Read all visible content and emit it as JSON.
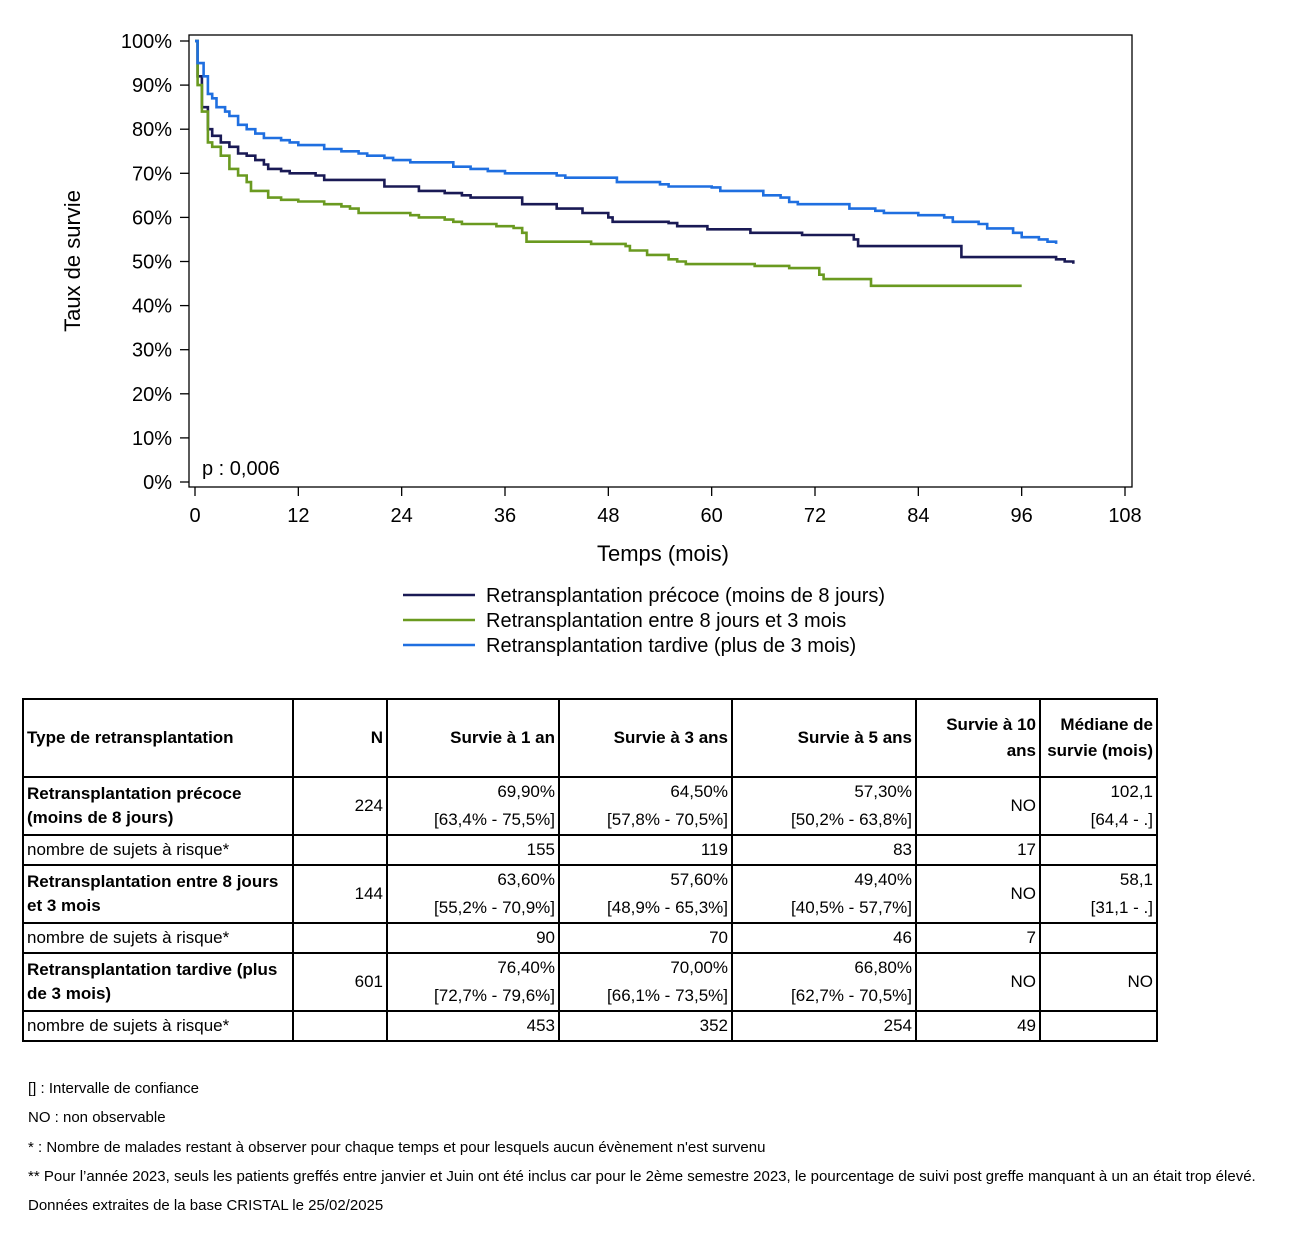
{
  "chart_data": {
    "type": "line",
    "ylabel": "Taux de survie",
    "xlabel": "Temps (mois)",
    "annotation": "p : 0,006",
    "xlim": [
      0,
      108
    ],
    "ylim": [
      0,
      100
    ],
    "x_ticks": [
      0,
      12,
      24,
      36,
      48,
      60,
      72,
      84,
      96,
      108
    ],
    "y_ticks": [
      0,
      10,
      20,
      30,
      40,
      50,
      60,
      70,
      80,
      90,
      100
    ],
    "y_tick_labels": [
      "0%",
      "10%",
      "20%",
      "30%",
      "40%",
      "50%",
      "60%",
      "70%",
      "80%",
      "90%",
      "100%"
    ],
    "grid": false,
    "legend_position": "bottom",
    "series": [
      {
        "name": "Retransplantation précoce (moins de 8 jours)",
        "color": "#1a1a55",
        "points": [
          [
            0,
            100
          ],
          [
            0.3,
            92
          ],
          [
            0.8,
            85
          ],
          [
            1.5,
            80
          ],
          [
            2,
            78.5
          ],
          [
            3,
            77
          ],
          [
            4,
            76
          ],
          [
            5,
            74.5
          ],
          [
            6,
            74
          ],
          [
            7,
            73
          ],
          [
            8,
            72
          ],
          [
            8.5,
            71
          ],
          [
            10,
            70.5
          ],
          [
            11,
            70
          ],
          [
            14,
            69.5
          ],
          [
            15,
            68.5
          ],
          [
            20,
            68.5
          ],
          [
            22,
            67
          ],
          [
            25,
            67
          ],
          [
            26,
            66
          ],
          [
            28,
            66
          ],
          [
            29,
            65.5
          ],
          [
            31,
            65
          ],
          [
            32,
            64.5
          ],
          [
            37,
            64.5
          ],
          [
            38,
            63
          ],
          [
            40,
            63
          ],
          [
            42,
            62
          ],
          [
            45,
            61
          ],
          [
            48,
            60
          ],
          [
            48.5,
            59
          ],
          [
            55,
            58.7
          ],
          [
            56,
            58
          ],
          [
            59,
            58
          ],
          [
            59.5,
            57.3
          ],
          [
            64,
            57.3
          ],
          [
            64.5,
            56.5
          ],
          [
            70,
            56.5
          ],
          [
            70.5,
            56
          ],
          [
            76,
            56
          ],
          [
            76.5,
            55
          ],
          [
            77,
            53.5
          ],
          [
            88,
            53.5
          ],
          [
            89,
            51
          ],
          [
            99,
            51
          ],
          [
            100,
            50.5
          ],
          [
            101,
            50
          ],
          [
            102,
            49.5
          ]
        ]
      },
      {
        "name": "Retransplantation entre 8 jours et 3 mois",
        "color": "#6a9a20",
        "points": [
          [
            0,
            100
          ],
          [
            0.3,
            90
          ],
          [
            0.8,
            84
          ],
          [
            1.5,
            77
          ],
          [
            2,
            76
          ],
          [
            3,
            74
          ],
          [
            4,
            71
          ],
          [
            5,
            69.5
          ],
          [
            6,
            68
          ],
          [
            6.5,
            66
          ],
          [
            8,
            66
          ],
          [
            8.5,
            64.5
          ],
          [
            10,
            64
          ],
          [
            12,
            63.6
          ],
          [
            15,
            63
          ],
          [
            17,
            62.5
          ],
          [
            18,
            62
          ],
          [
            19,
            61
          ],
          [
            24,
            61
          ],
          [
            25,
            60.5
          ],
          [
            26,
            60
          ],
          [
            28,
            60
          ],
          [
            29,
            59.5
          ],
          [
            30,
            59
          ],
          [
            31,
            58.5
          ],
          [
            34,
            58.5
          ],
          [
            35,
            58
          ],
          [
            37,
            57.6
          ],
          [
            38,
            56.5
          ],
          [
            38.5,
            54.5
          ],
          [
            45,
            54.5
          ],
          [
            46,
            54
          ],
          [
            50,
            53.5
          ],
          [
            50.5,
            52.5
          ],
          [
            52,
            52.5
          ],
          [
            52.5,
            51.5
          ],
          [
            54,
            51.5
          ],
          [
            55,
            50.5
          ],
          [
            56,
            50
          ],
          [
            57,
            49.4
          ],
          [
            64,
            49.4
          ],
          [
            65,
            49
          ],
          [
            69,
            48.5
          ],
          [
            72,
            48.5
          ],
          [
            72.5,
            47
          ],
          [
            73,
            46
          ],
          [
            78,
            46
          ],
          [
            78.5,
            44.5
          ],
          [
            96,
            44.5
          ]
        ]
      },
      {
        "name": "Retransplantation tardive (plus de 3 mois)",
        "color": "#1f6fe0",
        "points": [
          [
            0,
            100
          ],
          [
            0.3,
            95
          ],
          [
            1,
            92
          ],
          [
            1.5,
            88
          ],
          [
            2,
            87
          ],
          [
            2.5,
            85
          ],
          [
            3.5,
            84
          ],
          [
            4,
            83
          ],
          [
            5,
            81
          ],
          [
            6,
            80
          ],
          [
            7,
            79
          ],
          [
            8,
            78
          ],
          [
            9,
            78
          ],
          [
            10,
            77.5
          ],
          [
            11,
            77
          ],
          [
            12,
            76.4
          ],
          [
            15,
            75.5
          ],
          [
            17,
            75
          ],
          [
            19,
            74.5
          ],
          [
            20,
            74
          ],
          [
            22,
            73.5
          ],
          [
            23,
            73
          ],
          [
            25,
            72.5
          ],
          [
            29,
            72.5
          ],
          [
            30,
            71.5
          ],
          [
            32,
            71
          ],
          [
            34,
            70.5
          ],
          [
            36,
            70
          ],
          [
            42,
            69.5
          ],
          [
            43,
            69
          ],
          [
            48,
            69
          ],
          [
            49,
            68
          ],
          [
            53,
            68
          ],
          [
            54,
            67.5
          ],
          [
            55,
            67
          ],
          [
            60,
            66.8
          ],
          [
            61,
            66
          ],
          [
            65,
            66
          ],
          [
            66,
            65
          ],
          [
            68,
            64.5
          ],
          [
            69,
            63.5
          ],
          [
            70,
            63
          ],
          [
            75,
            63
          ],
          [
            76,
            62
          ],
          [
            79,
            61.5
          ],
          [
            80,
            61
          ],
          [
            83,
            61
          ],
          [
            84,
            60.5
          ],
          [
            87,
            60
          ],
          [
            88,
            59
          ],
          [
            91,
            58.5
          ],
          [
            92,
            57.5
          ],
          [
            95,
            56.5
          ],
          [
            96,
            55.5
          ],
          [
            98,
            55
          ],
          [
            99,
            54.5
          ],
          [
            100,
            54
          ]
        ]
      }
    ]
  },
  "table": {
    "headers": [
      "Type de retransplantation",
      "N",
      "Survie à 1 an",
      "Survie à 3 ans",
      "Survie à 5 ans",
      "Survie à 10 ans",
      "Médiane de survie (mois)"
    ],
    "rows": [
      {
        "label": "Retransplantation précoce (moins de 8 jours)",
        "n": "224",
        "s1": "69,90%",
        "s1_ci": "[63,4% - 75,5%]",
        "s3": "64,50%",
        "s3_ci": "[57,8% - 70,5%]",
        "s5": "57,30%",
        "s5_ci": "[50,2% - 63,8%]",
        "s10": "NO",
        "median": "102,1",
        "median_ci": "[64,4 - .]",
        "risk_label": "nombre de sujets à risque*",
        "risk": [
          "155",
          "119",
          "83",
          "17"
        ]
      },
      {
        "label": "Retransplantation entre 8 jours et 3 mois",
        "n": "144",
        "s1": "63,60%",
        "s1_ci": "[55,2% - 70,9%]",
        "s3": "57,60%",
        "s3_ci": "[48,9% - 65,3%]",
        "s5": "49,40%",
        "s5_ci": "[40,5% - 57,7%]",
        "s10": "NO",
        "median": "58,1",
        "median_ci": "[31,1 - .]",
        "risk_label": "nombre de sujets à risque*",
        "risk": [
          "90",
          "70",
          "46",
          "7"
        ]
      },
      {
        "label": "Retransplantation tardive (plus de 3 mois)",
        "n": "601",
        "s1": "76,40%",
        "s1_ci": "[72,7% - 79,6%]",
        "s3": "70,00%",
        "s3_ci": "[66,1% - 73,5%]",
        "s5": "66,80%",
        "s5_ci": "[62,7% - 70,5%]",
        "s10": "NO",
        "median": "NO",
        "median_ci": "",
        "risk_label": "nombre de sujets à risque*",
        "risk": [
          "453",
          "352",
          "254",
          "49"
        ]
      }
    ]
  },
  "notes": [
    "[] : Intervalle de confiance",
    "NO : non observable",
    "* : Nombre de malades restant à observer pour chaque temps et pour lesquels aucun évènement n'est survenu",
    "** Pour l’année 2023, seuls les patients greffés entre janvier et Juin ont été inclus car pour le 2ème semestre 2023, le pourcentage de suivi post greffe manquant à un an était trop élevé.",
    "Données extraites de la base CRISTAL le 25/02/2025"
  ]
}
